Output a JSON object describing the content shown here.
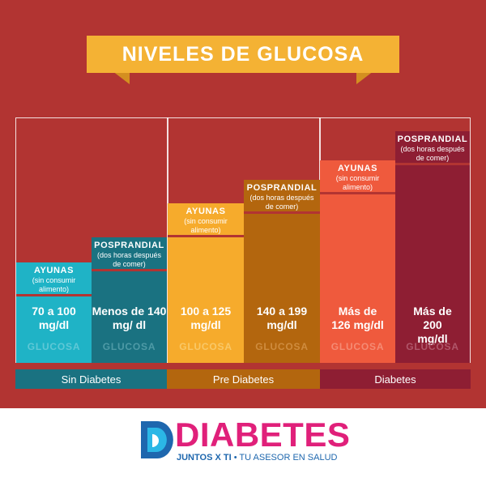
{
  "title": "NIVELES DE GLUCOSA",
  "colors": {
    "background": "#b23432",
    "title_banner": "#f4b234",
    "sin_diabetes_light": "#1fb3c6",
    "sin_diabetes_dark": "#1a7281",
    "pre_diabetes_light": "#f6ab2c",
    "pre_diabetes_dark": "#b3660e",
    "diabetes_light": "#ef5a3d",
    "diabetes_dark": "#8e1e33",
    "logo_pink": "#e0207a",
    "logo_blue": "#1e67ae"
  },
  "groups": [
    {
      "label": "Sin Diabetes",
      "bars": [
        {
          "head_title": "AYUNAS",
          "head_sub": "(sin consumir alimento)",
          "value": "70 a 100 mg/dl",
          "footer": "GLUCOSA"
        },
        {
          "head_title": "POSPRANDIAL",
          "head_sub": "(dos horas después de comer)",
          "value": "Menos de 140 mg/ dl",
          "footer": "GLUCOSA"
        }
      ]
    },
    {
      "label": "Pre Diabetes",
      "bars": [
        {
          "head_title": "AYUNAS",
          "head_sub": "(sin consumir alimento)",
          "value": "100 a 125 mg/dl",
          "footer": "GLUCOSA"
        },
        {
          "head_title": "POSPRANDIAL",
          "head_sub": "(dos horas después de comer)",
          "value": "140 a 199 mg/dl",
          "footer": "GLUCOSA"
        }
      ]
    },
    {
      "label": "Diabetes",
      "bars": [
        {
          "head_title": "AYUNAS",
          "head_sub": "(sin consumir alimento)",
          "value": "Más de 126 mg/dl",
          "footer": "GLUCOSA"
        },
        {
          "head_title": "POSPRANDIAL",
          "head_sub": "(dos horas después de comer)",
          "value": "Más de 200 mg/dl",
          "footer": "GLUCOSA"
        }
      ]
    }
  ],
  "logo": {
    "word": "DIABETES",
    "tag_bold": "JUNTOS X TI",
    "tag_sep": " • ",
    "tag_rest": "TU ASESOR EN SALUD"
  }
}
